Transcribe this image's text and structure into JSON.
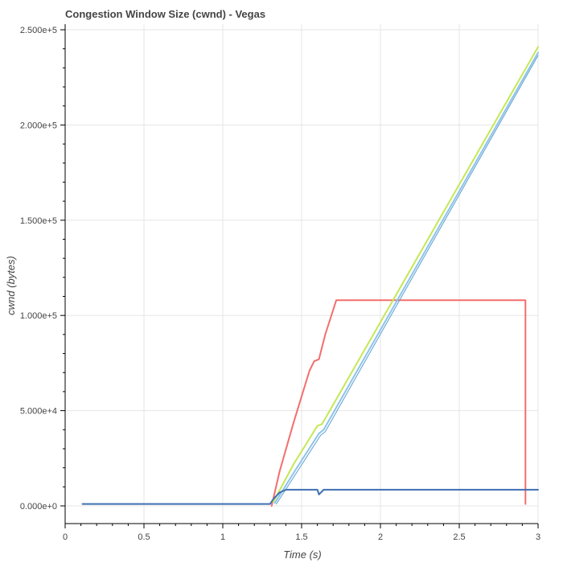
{
  "chart_data": {
    "type": "line",
    "title": "Congestion Window Size (cwnd) - Vegas",
    "xlabel": "Time (s)",
    "ylabel": "cwnd (bytes)",
    "xlim": [
      0,
      3
    ],
    "ylim": [
      -10000,
      250000
    ],
    "grid": true,
    "legend": "none",
    "x_ticks": [
      0,
      0.5,
      1,
      1.5,
      2,
      2.5,
      3
    ],
    "x_tick_labels": [
      "0",
      "0.5",
      "1",
      "1.5",
      "2",
      "2.5",
      "3"
    ],
    "y_ticks": [
      0,
      50000,
      100000,
      150000,
      200000,
      250000
    ],
    "y_tick_labels": [
      "0.000e+0",
      "5.000e+4",
      "1.000e+5",
      "1.500e+5",
      "2.000e+5",
      "2.500e+5"
    ],
    "series": [
      {
        "color": "#f46d6d",
        "width": 2,
        "points": [
          [
            1.31,
            0
          ],
          [
            1.36,
            18000
          ],
          [
            1.45,
            44000
          ],
          [
            1.55,
            71000
          ],
          [
            1.58,
            76000
          ],
          [
            1.61,
            77000
          ],
          [
            1.65,
            90000
          ],
          [
            1.72,
            108000
          ],
          [
            2.92,
            108000
          ],
          [
            2.92,
            1000
          ]
        ]
      },
      {
        "color": "#c4e856",
        "width": 2,
        "points": [
          [
            1.32,
            2000
          ],
          [
            1.45,
            22000
          ],
          [
            1.6,
            42000
          ],
          [
            1.63,
            43000
          ],
          [
            3.0,
            241000
          ]
        ]
      },
      {
        "color": "#8cc3ea",
        "width": 2,
        "points": [
          [
            1.33,
            1500
          ],
          [
            1.47,
            20000
          ],
          [
            1.61,
            38000
          ],
          [
            1.64,
            40000
          ],
          [
            3.0,
            238000
          ]
        ]
      },
      {
        "color": "#5e9ecf",
        "width": 1,
        "points": [
          [
            1.34,
            1000
          ],
          [
            1.48,
            19000
          ],
          [
            1.62,
            37000
          ],
          [
            1.65,
            39000
          ],
          [
            3.0,
            236500
          ]
        ]
      },
      {
        "color": "#3e6fb3",
        "width": 2,
        "points": [
          [
            0.11,
            1000
          ],
          [
            1.3,
            1000
          ],
          [
            1.32,
            3500
          ],
          [
            1.36,
            7000
          ],
          [
            1.4,
            8500
          ],
          [
            1.6,
            8500
          ],
          [
            1.61,
            6000
          ],
          [
            1.64,
            8500
          ],
          [
            3.0,
            8500
          ]
        ]
      }
    ]
  }
}
